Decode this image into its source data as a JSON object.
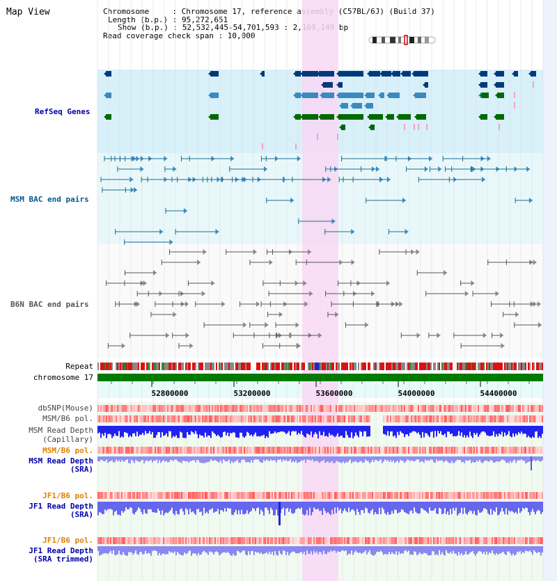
{
  "page_title": "Map View",
  "header": {
    "chromosome": "Chromosome     : Chromosome 17, reference assembly (C57BL/6J) (Build 37)",
    "length": "Length (b.p.) : 95,272,651",
    "show": "Show (b.p.) : 52,532,445-54,701,593 : 2,169,149 bp",
    "coverage": "Read coverage check span : 10,000"
  },
  "tracks": {
    "refseq": "RefSeq Genes",
    "msm_bac": "MSM BAC end pairs",
    "b6n_bac": "B6N BAC end pairs",
    "repeat": "Repeat",
    "chromosome": "chromosome 17",
    "dbsnp": "dbSNP(Mouse)",
    "msm_b6_pol": "MSM/B6 pol.",
    "msm_read_cap_1": "MSM Read Depth",
    "msm_read_cap_2": "(Capillary)",
    "msm_b6_pol2": "MSM/B6 pol.",
    "msm_read_sra_1": "MSM Read Depth",
    "msm_read_sra_2": "(SRA)",
    "jf1_b6_pol": "JF1/B6 pol.",
    "jf1_read_sra_1": "JF1 Read Depth",
    "jf1_read_sra_2": "(SRA)",
    "jf1_b6_pol2": "JF1/B6 pol.",
    "jf1_read_trim_1": "JF1 Read Depth",
    "jf1_read_trim_2": "(SRA trimmed)"
  },
  "axis_ticks": [
    "52800000",
    "53200000",
    "53600000",
    "54000000",
    "54400000"
  ],
  "colors": {
    "refseq_label": "#0000aa",
    "msm_bac_label": "#005a8c",
    "b6n_bac_label": "#555555",
    "pol_label": "#e08000",
    "read_label": "#0000aa",
    "highlight": "#f8d8f4",
    "chromosome_bar": "#007a00"
  }
}
